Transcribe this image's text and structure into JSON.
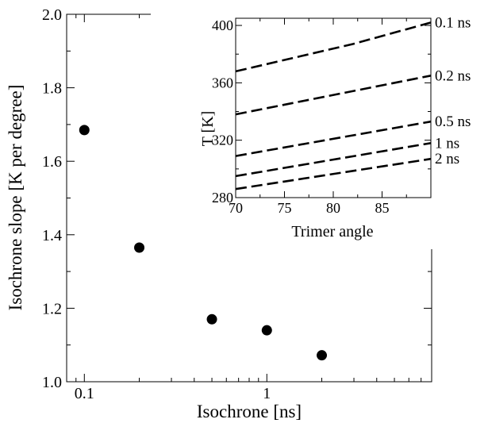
{
  "chart_data": [
    {
      "type": "scatter",
      "xlabel": "Isochrone [ns]",
      "ylabel": "Isochrone slope [K per degree]",
      "xscale": "log",
      "xlim": [
        0.08,
        8
      ],
      "ylim": [
        1.0,
        2.0
      ],
      "x_ticks": [
        0.1,
        1
      ],
      "x_tick_labels": [
        "0.1",
        "1"
      ],
      "y_ticks": [
        1.0,
        1.2,
        1.4,
        1.6,
        1.8,
        2.0
      ],
      "y_tick_labels": [
        "1.0",
        "1.2",
        "1.4",
        "1.6",
        "1.8",
        "2.0"
      ],
      "grid": false,
      "series": [
        {
          "marker": "filled-circle",
          "color": "#000000",
          "points": [
            {
              "x": 0.1,
              "y": 1.685
            },
            {
              "x": 0.2,
              "y": 1.365
            },
            {
              "x": 0.5,
              "y": 1.17
            },
            {
              "x": 1.0,
              "y": 1.14
            },
            {
              "x": 2.0,
              "y": 1.072
            }
          ]
        }
      ]
    },
    {
      "type": "line",
      "placement": "inset-top-right",
      "xlabel": "Trimer angle",
      "ylabel": "T [K]",
      "xlim": [
        70,
        90
      ],
      "ylim": [
        280,
        405
      ],
      "x_ticks": [
        70,
        75,
        80,
        85
      ],
      "x_tick_labels": [
        "70",
        "75",
        "80",
        "85"
      ],
      "y_ticks": [
        280,
        320,
        360,
        400
      ],
      "y_tick_labels": [
        "280",
        "320",
        "360",
        "400"
      ],
      "line_style": "dashed",
      "color": "#000000",
      "grid": false,
      "series": [
        {
          "label": "0.1 ns",
          "x": [
            70,
            82,
            90
          ],
          "y": [
            368,
            387,
            402
          ]
        },
        {
          "label": "0.2 ns",
          "x": [
            70,
            90
          ],
          "y": [
            338,
            365
          ]
        },
        {
          "label": "0.5 ns",
          "x": [
            70,
            90
          ],
          "y": [
            309,
            333
          ]
        },
        {
          "label": "1 ns",
          "x": [
            70,
            90
          ],
          "y": [
            295,
            318
          ]
        },
        {
          "label": "2 ns",
          "x": [
            70,
            90
          ],
          "y": [
            286,
            307
          ]
        }
      ]
    }
  ]
}
